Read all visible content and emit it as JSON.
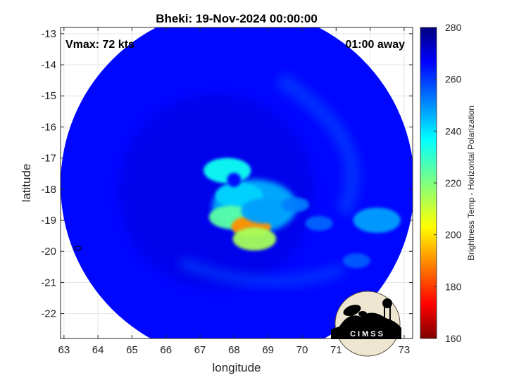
{
  "chart_data": {
    "type": "heatmap",
    "title": "Bheki: 19-Nov-2024 00:00:00",
    "xlabel": "longitude",
    "ylabel": "latitude",
    "xlim": [
      62.9,
      73.25
    ],
    "ylim": [
      -22.8,
      -12.8
    ],
    "x_ticks": [
      63,
      64,
      65,
      66,
      67,
      68,
      69,
      70,
      71,
      72,
      73
    ],
    "y_ticks": [
      -13,
      -14,
      -15,
      -16,
      -17,
      -18,
      -19,
      -20,
      -21,
      -22
    ],
    "grid": true,
    "annotations": {
      "vmax": "Vmax: 72 kts",
      "time_offset": "01:00 away"
    },
    "colorbar": {
      "label": "Brightness Temp - Horizontal Polarization",
      "min": 160,
      "max": 280,
      "ticks": [
        160,
        180,
        200,
        220,
        240,
        260,
        280
      ],
      "colormap": "jet"
    },
    "swath": {
      "center_lon": 68.1,
      "center_lat": -17.85,
      "radius_deg": 5.2
    },
    "features": [
      {
        "lon": 68.15,
        "lat": -18.2,
        "value": 242
      },
      {
        "lon": 67.8,
        "lat": -17.4,
        "value": 235
      },
      {
        "lon": 67.9,
        "lat": -18.9,
        "value": 225
      },
      {
        "lon": 68.5,
        "lat": -19.2,
        "value": 190
      },
      {
        "lon": 68.6,
        "lat": -19.6,
        "value": 215
      },
      {
        "lon": 68.9,
        "lat": -18.7,
        "value": 248
      },
      {
        "lon": 69.8,
        "lat": -18.5,
        "value": 252
      },
      {
        "lon": 70.5,
        "lat": -19.1,
        "value": 255
      },
      {
        "lon": 72.2,
        "lat": -19.0,
        "value": 248
      },
      {
        "lon": 71.6,
        "lat": -20.3,
        "value": 256
      }
    ],
    "background_value": 266
  },
  "logo": {
    "text": "CIMSS"
  }
}
